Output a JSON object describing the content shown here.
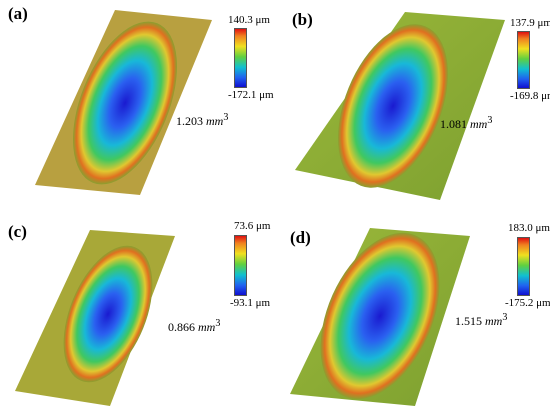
{
  "panels": [
    {
      "label": "(a)",
      "max": "140.3 μm",
      "min": "-172.1 μm",
      "volume": "1.203",
      "unit": "mm",
      "exp": "3"
    },
    {
      "label": "(b)",
      "max": "137.9 μm",
      "min": "-169.8 μm",
      "volume": "1.081",
      "unit": "mm",
      "exp": "3"
    },
    {
      "label": "(c)",
      "max": "73.6 μm",
      "min": "-93.1 μm",
      "volume": "0.866",
      "unit": "mm",
      "exp": "3"
    },
    {
      "label": "(d)",
      "max": "183.0 μm",
      "min": "-175.2 μm",
      "volume": "1.515",
      "unit": "mm",
      "exp": "3"
    }
  ],
  "colormap": [
    "#e01010",
    "#f0e020",
    "#60d040",
    "#10c0d0",
    "#1010d0"
  ]
}
